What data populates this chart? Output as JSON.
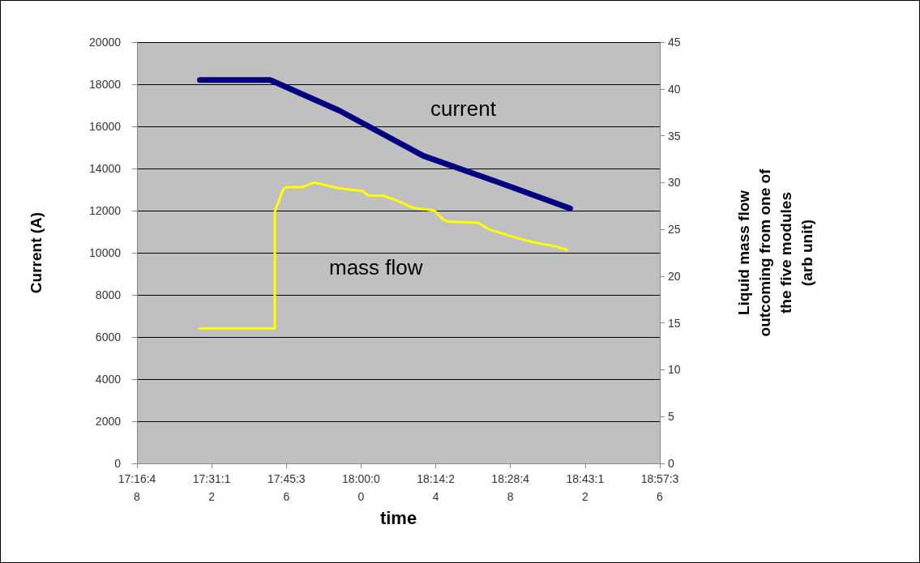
{
  "chart_data": {
    "type": "line",
    "xlabel": "time",
    "ylabel": "Current (A)",
    "y2label": "Liquid mass flow\noutcoming from one of\nthe five modules\n(arb unit)",
    "xlim": [
      17.28,
      18.96
    ],
    "xticks": [
      {
        "value": 17.28,
        "label": "17:16:48"
      },
      {
        "value": 17.52,
        "label": "17:31:12"
      },
      {
        "value": 17.76,
        "label": "17:45:36"
      },
      {
        "value": 18.0,
        "label": "18:00:00"
      },
      {
        "value": 18.24,
        "label": "18:14:24"
      },
      {
        "value": 18.48,
        "label": "18:28:48"
      },
      {
        "value": 18.72,
        "label": "18:43:12"
      },
      {
        "value": 18.96,
        "label": "18:57:36"
      }
    ],
    "ylim": [
      0,
      20000
    ],
    "yticks": [
      0,
      2000,
      4000,
      6000,
      8000,
      10000,
      12000,
      14000,
      16000,
      18000,
      20000
    ],
    "y2lim": [
      0,
      45
    ],
    "y2ticks": [
      0,
      5,
      10,
      15,
      20,
      25,
      30,
      35,
      40,
      45
    ],
    "grid": "y",
    "marker": "none",
    "line_style": "solid",
    "legend": false,
    "series": [
      {
        "name": "current",
        "color": "#000080",
        "x": [
          17.482,
          17.708,
          17.93,
          18.2,
          18.45,
          18.672
        ],
        "values": [
          18200,
          18200,
          16750,
          14600,
          13300,
          12100
        ]
      },
      {
        "name": "mass flow",
        "color": "#ffff00",
        "axis": "y2",
        "x": [
          17.48,
          17.723,
          17.723,
          17.75,
          17.761,
          17.81,
          17.849,
          17.926,
          18.004,
          18.023,
          18.071,
          18.12,
          18.168,
          18.236,
          18.265,
          18.285,
          18.377,
          18.411,
          18.508,
          18.556,
          18.624,
          18.661
        ],
        "values": [
          14.4,
          14.4,
          26.9,
          29.3,
          29.5,
          29.5,
          30.0,
          29.4,
          29.1,
          28.6,
          28.6,
          28.0,
          27.3,
          27.0,
          26.0,
          25.8,
          25.7,
          25.0,
          24.0,
          23.6,
          23.2,
          22.8
        ]
      }
    ]
  }
}
